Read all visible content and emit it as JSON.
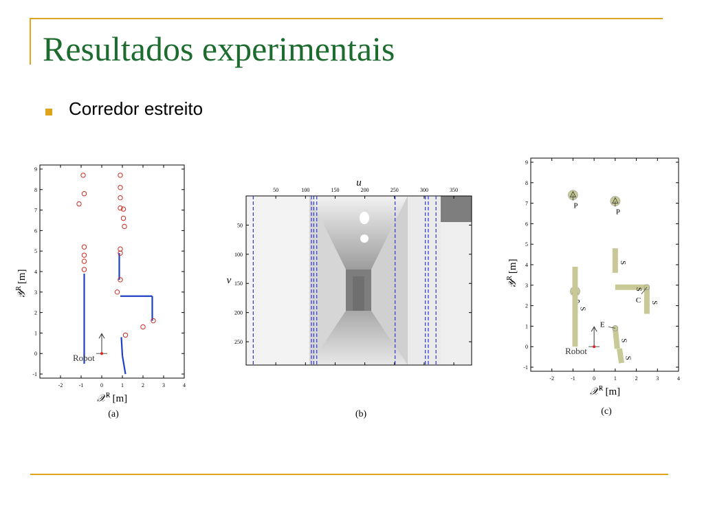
{
  "slide": {
    "title": "Resultados experimentais",
    "bullet": "Corredor estreito"
  },
  "colors": {
    "title": "#1d6b2e",
    "accent_rules": "#e0a31c",
    "laser_points": "#1f3fc4",
    "landmarks": "#d0281e",
    "features": "#c9c998",
    "dashed_lines": "#2a35d6"
  },
  "chart_data": [
    {
      "type": "scatter",
      "caption": "(a)",
      "xlabel": "𝒳",
      "xlabel_sup": "R",
      "xlabel_unit": "[m]",
      "ylabel": "𝒴",
      "ylabel_sup": "R",
      "ylabel_unit": "[m]",
      "xlim": [
        -3,
        4
      ],
      "ylim": [
        -1.2,
        9.2
      ],
      "xticks": [
        "-2",
        "-1",
        "0",
        "1",
        "2",
        "3",
        "4"
      ],
      "yticks": [
        "-1",
        "0",
        "1",
        "2",
        "3",
        "4",
        "5",
        "6",
        "7",
        "8",
        "9"
      ],
      "annotation": "Robot",
      "series": [
        {
          "kind": "segments",
          "color": "#1f3fc4",
          "segments": [
            [
              [
                -0.85,
                -0.5
              ],
              [
                -0.85,
                3.9
              ]
            ],
            [
              [
                0.85,
                3.6
              ],
              [
                0.85,
                4.9
              ]
            ],
            [
              [
                0.9,
                2.8
              ],
              [
                2.45,
                2.8
              ]
            ],
            [
              [
                2.45,
                2.8
              ],
              [
                2.45,
                1.6
              ]
            ],
            [
              [
                0.95,
                0.8
              ],
              [
                1.0,
                -0.1
              ]
            ],
            [
              [
                1.0,
                -0.1
              ],
              [
                1.15,
                -1.0
              ]
            ]
          ]
        },
        {
          "kind": "markers",
          "color": "#d0281e",
          "points": [
            [
              -0.9,
              8.7
            ],
            [
              -0.85,
              7.8
            ],
            [
              -1.1,
              7.3
            ],
            [
              -0.85,
              5.2
            ],
            [
              -0.85,
              4.8
            ],
            [
              -0.85,
              4.5
            ],
            [
              -0.85,
              4.1
            ],
            [
              0.9,
              8.7
            ],
            [
              0.9,
              8.1
            ],
            [
              0.9,
              7.6
            ],
            [
              0.9,
              7.1
            ],
            [
              1.05,
              7.05
            ],
            [
              1.05,
              6.6
            ],
            [
              1.1,
              6.2
            ],
            [
              0.9,
              5.1
            ],
            [
              0.9,
              4.9
            ],
            [
              0.9,
              3.6
            ],
            [
              0.75,
              3.0
            ],
            [
              2.5,
              1.6
            ],
            [
              2.0,
              1.3
            ],
            [
              1.15,
              0.9
            ]
          ]
        }
      ]
    },
    {
      "type": "image",
      "caption": "(b)",
      "xlabel": "u",
      "ylabel": "v",
      "xlim": [
        0,
        380
      ],
      "ylim": [
        0,
        290
      ],
      "xticks": [
        "50",
        "100",
        "150",
        "200",
        "250",
        "300",
        "350"
      ],
      "yticks": [
        "50",
        "100",
        "150",
        "200",
        "250"
      ],
      "vertical_dashed_lines_u": [
        12,
        110,
        114,
        119,
        251,
        302,
        307,
        320
      ]
    },
    {
      "type": "scatter",
      "caption": "(c)",
      "xlabel": "𝒳",
      "xlabel_sup": "R",
      "xlabel_unit": "[m]",
      "ylabel": "𝒴",
      "ylabel_sup": "R",
      "ylabel_unit": "[m]",
      "xlim": [
        -3,
        4
      ],
      "ylim": [
        -1.2,
        9.2
      ],
      "xticks": [
        "-2",
        "-1",
        "0",
        "1",
        "2",
        "3",
        "4"
      ],
      "yticks": [
        "-1",
        "0",
        "1",
        "2",
        "3",
        "4",
        "5",
        "6",
        "7",
        "8",
        "9"
      ],
      "annotation": "Robot",
      "features": [
        {
          "label": "P",
          "kind": "point",
          "x": -1.0,
          "y": 7.4
        },
        {
          "label": "P",
          "kind": "point",
          "x": 1.0,
          "y": 7.1
        },
        {
          "label": "P",
          "kind": "point",
          "x": -0.9,
          "y": 2.7
        },
        {
          "label": "S",
          "kind": "segment",
          "x1": 1.0,
          "y1": 4.8,
          "x2": 1.0,
          "y2": 3.6
        },
        {
          "label": "S",
          "kind": "segment",
          "x1": -0.9,
          "y1": 3.9,
          "x2": -0.9,
          "y2": 0.0
        },
        {
          "label": "S",
          "kind": "segment",
          "x1": 1.0,
          "y1": 2.9,
          "x2": 2.5,
          "y2": 2.9
        },
        {
          "label": "S",
          "kind": "segment",
          "x1": 2.5,
          "y1": 2.9,
          "x2": 2.5,
          "y2": 1.6
        },
        {
          "label": "S",
          "kind": "segment",
          "x1": 1.0,
          "y1": 0.9,
          "x2": 1.1,
          "y2": -0.1
        },
        {
          "label": "S",
          "kind": "segment",
          "x1": 1.2,
          "y1": -0.1,
          "x2": 1.3,
          "y2": -0.8
        },
        {
          "label": "C",
          "kind": "corner",
          "x": 2.5,
          "y": 2.9
        },
        {
          "label": "E",
          "kind": "endpoint",
          "x": 1.0,
          "y": 0.9
        }
      ]
    }
  ]
}
